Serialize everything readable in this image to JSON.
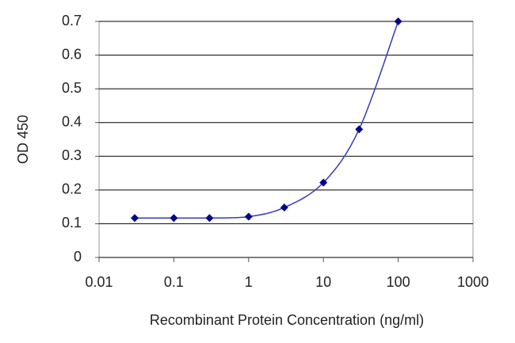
{
  "chart_data": {
    "type": "line",
    "x_label": "Recombinant Protein Concentration (ng/ml)",
    "y_label": "OD 450",
    "x": [
      0.03,
      0.1,
      0.3,
      1,
      3,
      10,
      30,
      100
    ],
    "values": [
      0.117,
      0.117,
      0.117,
      0.121,
      0.148,
      0.222,
      0.38,
      0.7
    ],
    "color": "#3a3ab8",
    "marker_color": "#00008b",
    "xlim": [
      0.01,
      1000
    ],
    "xticks": [
      0.01,
      0.1,
      1,
      10,
      100,
      1000
    ],
    "x_log": true,
    "ylim": [
      0,
      0.7
    ],
    "yticks": [
      0,
      0.1,
      0.2,
      0.3,
      0.4,
      0.5,
      0.6,
      0.7
    ],
    "grid": true
  }
}
